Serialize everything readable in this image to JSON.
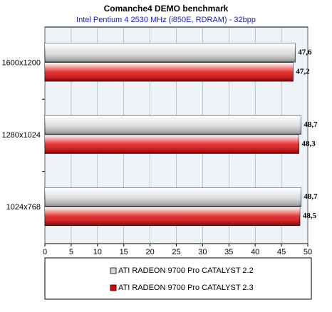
{
  "chart_data": {
    "type": "bar",
    "orientation": "horizontal",
    "title": "Comanche4 DEMO benchmark",
    "subtitle": "Intel Pentium 4 2530 MHz (i850E, RDRAM) - 32bpp",
    "categories": [
      "1600x1200",
      "1280x1024",
      "1024x768"
    ],
    "series": [
      {
        "name": "ATI RADEON 9700 Pro CATALYST 2.2",
        "color": "#d8d8d8",
        "values": [
          47.6,
          48.7,
          48.7
        ],
        "value_labels": [
          "47,6",
          "48,7",
          "48,7"
        ]
      },
      {
        "name": "ATI RADEON 9700 Pro CATALYST 2.3",
        "color": "#e00000",
        "values": [
          47.2,
          48.3,
          48.5
        ],
        "value_labels": [
          "47,2",
          "48,3",
          "48,5"
        ]
      }
    ],
    "xlim": [
      0,
      50
    ],
    "xticks": [
      0,
      5,
      10,
      15,
      20,
      25,
      30,
      35,
      40,
      45,
      50
    ],
    "grid": true
  }
}
